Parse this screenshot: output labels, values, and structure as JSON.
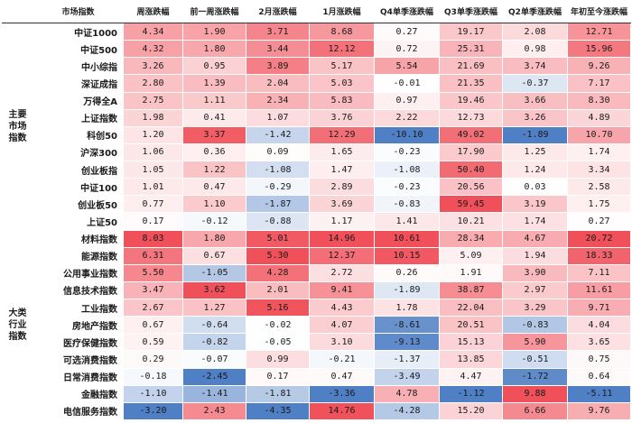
{
  "table": {
    "headers": [
      "市场指数",
      "周涨跌幅",
      "前一周涨跌幅",
      "2月涨跌幅",
      "1月涨跌幅",
      "Q4单季涨跌幅",
      "Q3单季涨跌幅",
      "Q2单季涨跌幅",
      "年初至今涨跌幅"
    ],
    "groups": [
      {
        "label": "主要市场指数",
        "rows": [
          {
            "name": "中证1000",
            "values": [
              "4.34",
              "1.90",
              "3.71",
              "8.68",
              "0.27",
              "19.17",
              "2.08",
              "12.71"
            ]
          },
          {
            "name": "中证500",
            "values": [
              "4.32",
              "1.80",
              "3.44",
              "12.12",
              "0.72",
              "25.31",
              "0.98",
              "15.96"
            ]
          },
          {
            "name": "中小综指",
            "values": [
              "3.26",
              "0.95",
              "3.89",
              "5.17",
              "5.54",
              "21.69",
              "3.74",
              "9.26"
            ]
          },
          {
            "name": "深证成指",
            "values": [
              "2.80",
              "1.39",
              "2.04",
              "5.03",
              "-0.01",
              "21.35",
              "-0.37",
              "7.17"
            ]
          },
          {
            "name": "万得全A",
            "values": [
              "2.75",
              "1.11",
              "2.34",
              "5.83",
              "0.97",
              "19.46",
              "3.66",
              "8.30"
            ]
          },
          {
            "name": "上证指数",
            "values": [
              "1.98",
              "0.41",
              "1.07",
              "3.76",
              "2.22",
              "12.73",
              "3.26",
              "4.89"
            ]
          },
          {
            "name": "科创50",
            "values": [
              "1.20",
              "3.37",
              "-1.42",
              "12.29",
              "-10.10",
              "49.02",
              "-1.89",
              "10.70"
            ]
          },
          {
            "name": "沪深300",
            "values": [
              "1.06",
              "0.36",
              "0.09",
              "1.65",
              "-0.23",
              "17.90",
              "1.25",
              "1.74"
            ]
          },
          {
            "name": "创业板指",
            "values": [
              "1.05",
              "1.22",
              "-1.08",
              "1.47",
              "-1.08",
              "50.40",
              "1.24",
              "3.34"
            ]
          },
          {
            "name": "中证100",
            "values": [
              "1.01",
              "0.47",
              "-0.29",
              "2.89",
              "-0.23",
              "20.56",
              "0.03",
              "2.58"
            ]
          },
          {
            "name": "创业板50",
            "values": [
              "0.77",
              "1.10",
              "-1.87",
              "3.69",
              "-0.83",
              "59.45",
              "3.19",
              "1.75"
            ]
          },
          {
            "name": "上证50",
            "values": [
              "0.17",
              "-0.12",
              "-0.88",
              "1.17",
              "1.41",
              "10.21",
              "1.74",
              "0.27"
            ]
          }
        ]
      },
      {
        "label": "大类行业指数",
        "rows": [
          {
            "name": "材料指数",
            "values": [
              "8.03",
              "1.80",
              "5.01",
              "14.96",
              "10.61",
              "28.34",
              "4.67",
              "20.72"
            ]
          },
          {
            "name": "能源指数",
            "values": [
              "6.31",
              "0.67",
              "5.30",
              "12.37",
              "10.15",
              "5.09",
              "1.94",
              "18.33"
            ]
          },
          {
            "name": "公用事业指数",
            "values": [
              "5.50",
              "-1.05",
              "4.28",
              "2.72",
              "0.26",
              "1.91",
              "3.90",
              "7.11"
            ]
          },
          {
            "name": "信息技术指数",
            "values": [
              "3.47",
              "3.62",
              "2.01",
              "9.41",
              "-1.89",
              "38.87",
              "2.97",
              "11.61"
            ]
          },
          {
            "name": "工业指数",
            "values": [
              "2.67",
              "1.27",
              "5.16",
              "4.43",
              "1.78",
              "22.04",
              "3.29",
              "9.71"
            ]
          },
          {
            "name": "房地产指数",
            "values": [
              "0.67",
              "-0.64",
              "-0.02",
              "4.07",
              "-8.61",
              "20.51",
              "-0.83",
              "4.04"
            ]
          },
          {
            "name": "医疗保健指数",
            "values": [
              "0.59",
              "-0.82",
              "-0.05",
              "3.10",
              "-9.13",
              "15.13",
              "5.90",
              "3.65"
            ]
          },
          {
            "name": "可选消费指数",
            "values": [
              "0.29",
              "-0.07",
              "0.99",
              "-0.21",
              "-1.37",
              "13.85",
              "-0.51",
              "0.75"
            ]
          },
          {
            "name": "日常消费指数",
            "values": [
              "-0.18",
              "-2.45",
              "0.17",
              "0.47",
              "-3.49",
              "4.47",
              "-1.72",
              "0.64"
            ]
          },
          {
            "name": "金融指数",
            "values": [
              "-1.10",
              "-1.41",
              "-1.81",
              "-3.36",
              "4.78",
              "-1.12",
              "9.88",
              "-5.11"
            ]
          },
          {
            "name": "电信服务指数",
            "values": [
              "-3.20",
              "2.43",
              "-4.35",
              "14.76",
              "-4.28",
              "15.20",
              "6.66",
              "9.76"
            ]
          }
        ]
      }
    ]
  },
  "colors": {
    "positive_max": "#f0505a",
    "negative_max": "#4f7fc4",
    "neutral": "#ffffff",
    "border": "#333333"
  }
}
